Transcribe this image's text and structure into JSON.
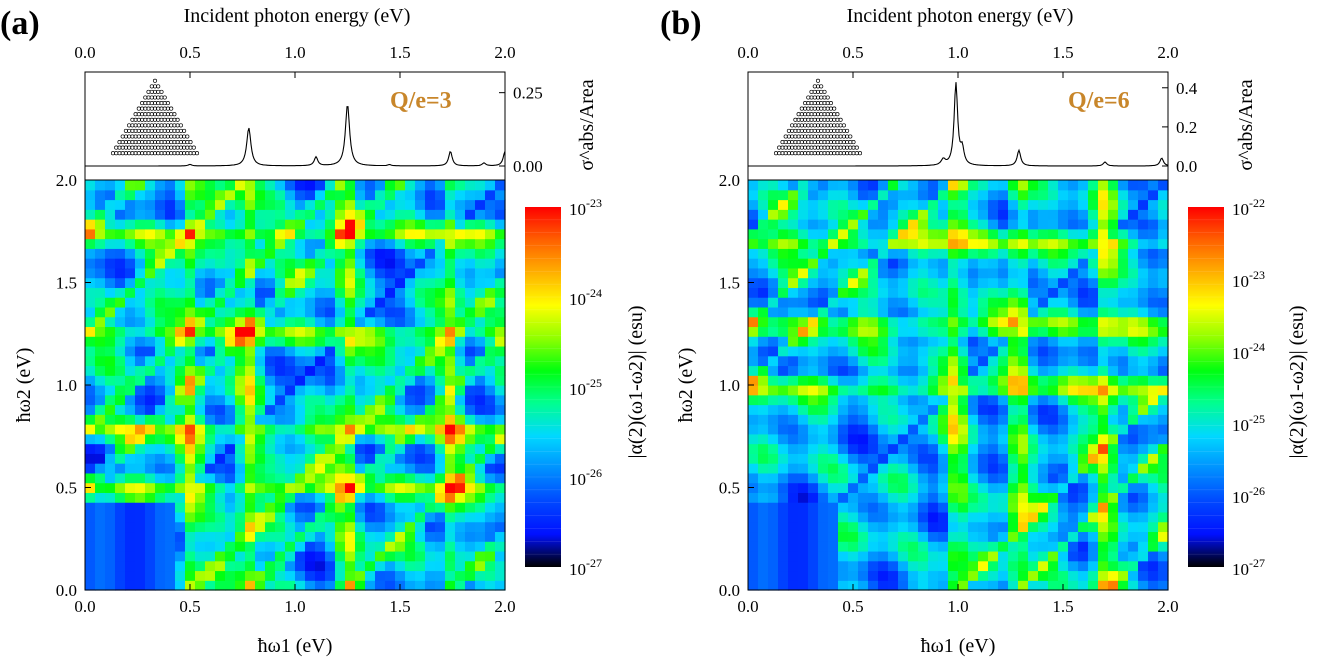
{
  "colors": {
    "colormap": [
      "#000000",
      "#0010ff",
      "#0048ff",
      "#0090ff",
      "#00d8ff",
      "#00ff90",
      "#00ff10",
      "#90ff00",
      "#ffff00",
      "#ffb000",
      "#ff6000",
      "#ff0000"
    ],
    "annotation": "#c8862a",
    "line": "#000000"
  },
  "chart_data": [
    {
      "panel": "(a)",
      "type": "line",
      "annotation": "Q/e=3",
      "xlabel": "Incident photon energy (eV)",
      "ylabel": "σ^abs/Area",
      "xlim": [
        0,
        2
      ],
      "ylim": [
        0,
        0.3
      ],
      "x_ticks": [
        "0.0",
        "0.5",
        "1.0",
        "1.5",
        "2.0"
      ],
      "y_ticks": [
        "0.00",
        "0.25"
      ],
      "peaks": [
        {
          "x": 0.5,
          "y": 0.005,
          "w": 0.01
        },
        {
          "x": 0.78,
          "y": 0.13,
          "w": 0.012
        },
        {
          "x": 1.1,
          "y": 0.03,
          "w": 0.01
        },
        {
          "x": 1.25,
          "y": 0.21,
          "w": 0.012
        },
        {
          "x": 1.45,
          "y": 0.004,
          "w": 0.01
        },
        {
          "x": 1.74,
          "y": 0.05,
          "w": 0.01
        },
        {
          "x": 1.9,
          "y": 0.01,
          "w": 0.01
        },
        {
          "x": 2.0,
          "y": 0.05,
          "w": 0.01
        }
      ]
    },
    {
      "panel": "(a)",
      "type": "heatmap",
      "xlabel": "ħω1 (eV)",
      "ylabel": "ħω2 (eV)",
      "colorbar_label": "|α(2)(ω1-ω2)| (esu)",
      "x_ticks": [
        "0.0",
        "0.5",
        "1.0",
        "1.5",
        "2.0"
      ],
      "y_ticks": [
        "0.0",
        "0.5",
        "1.0",
        "1.5",
        "2.0"
      ],
      "xlim": [
        0,
        2
      ],
      "ylim": [
        0,
        2
      ],
      "log_range": [
        -27,
        -23
      ],
      "colorbar_ticks": [
        "10",
        "10",
        "10",
        "10",
        "10"
      ],
      "colorbar_exponents": [
        "-23",
        "-24",
        "-25",
        "-26",
        "-27"
      ],
      "resonances": [
        0.5,
        0.78,
        1.25,
        1.74
      ]
    },
    {
      "panel": "(b)",
      "type": "line",
      "annotation": "Q/e=6",
      "xlabel": "Incident photon energy (eV)",
      "ylabel": "σ^abs/Area",
      "xlim": [
        0,
        2
      ],
      "ylim": [
        0,
        0.45
      ],
      "x_ticks": [
        "0.0",
        "0.5",
        "1.0",
        "1.5",
        "2.0"
      ],
      "y_ticks": [
        "0.0",
        "0.2",
        "0.4"
      ],
      "peaks": [
        {
          "x": 0.93,
          "y": 0.03,
          "w": 0.012
        },
        {
          "x": 0.99,
          "y": 0.42,
          "w": 0.01
        },
        {
          "x": 1.02,
          "y": 0.08,
          "w": 0.01
        },
        {
          "x": 1.29,
          "y": 0.08,
          "w": 0.01
        },
        {
          "x": 1.7,
          "y": 0.02,
          "w": 0.01
        },
        {
          "x": 1.97,
          "y": 0.04,
          "w": 0.01
        }
      ]
    },
    {
      "panel": "(b)",
      "type": "heatmap",
      "xlabel": "ħω1 (eV)",
      "ylabel": "ħω2 (eV)",
      "colorbar_label": "|α(2)(ω1-ω2)| (esu)",
      "x_ticks": [
        "0.0",
        "0.5",
        "1.0",
        "1.5",
        "2.0"
      ],
      "y_ticks": [
        "0.0",
        "0.5",
        "1.0",
        "1.5",
        "2.0"
      ],
      "xlim": [
        0,
        2
      ],
      "ylim": [
        0,
        2
      ],
      "log_range": [
        -27,
        -22
      ],
      "colorbar_ticks": [
        "10",
        "10",
        "10",
        "10",
        "10",
        "10"
      ],
      "colorbar_exponents": [
        "-22",
        "-23",
        "-24",
        "-25",
        "-26",
        "-27"
      ],
      "resonances": [
        0.99,
        1.29,
        1.7
      ]
    }
  ]
}
